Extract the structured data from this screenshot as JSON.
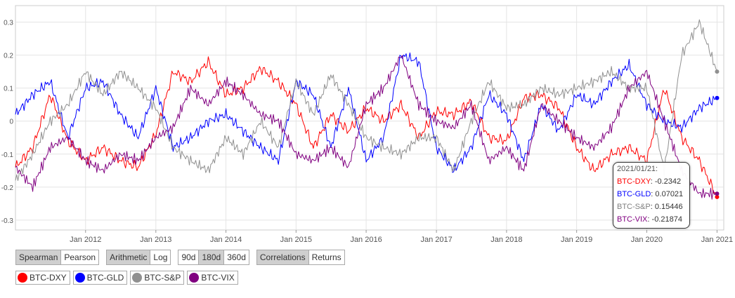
{
  "chart_data": {
    "type": "line",
    "title": "",
    "xlabel": "",
    "ylabel": "",
    "ylim": [
      -0.33,
      0.35
    ],
    "xlim": [
      "2011-01-01",
      "2021-02-05"
    ],
    "grid": true,
    "yticks": [
      0.3,
      0.2,
      0.1,
      0,
      -0.1,
      -0.2,
      -0.3
    ],
    "yticklabels": [
      "0.3",
      "0.2",
      "0.1",
      "0",
      "-0.1",
      "-0.2",
      "-0.3"
    ],
    "xticks": [
      "2012-01-01",
      "2013-01-01",
      "2014-01-01",
      "2015-01-01",
      "2016-01-01",
      "2017-01-01",
      "2018-01-01",
      "2019-01-01",
      "2020-01-01",
      "2021-01-01"
    ],
    "xticklabels": [
      "Jan 2012",
      "Jan 2013",
      "Jan 2014",
      "Jan 2015",
      "Jan 2016",
      "Jan 2017",
      "Jan 2018",
      "Jan 2019",
      "Jan 2020",
      "Jan 2021"
    ],
    "series": [
      {
        "name": "BTC-DXY",
        "color": "#ff0000",
        "x": [
          "2011-01",
          "2011-04",
          "2011-07",
          "2011-10",
          "2012-01",
          "2012-04",
          "2012-07",
          "2012-10",
          "2013-01",
          "2013-04",
          "2013-07",
          "2013-10",
          "2014-01",
          "2014-04",
          "2014-07",
          "2014-10",
          "2015-01",
          "2015-04",
          "2015-07",
          "2015-10",
          "2016-01",
          "2016-04",
          "2016-07",
          "2016-10",
          "2017-01",
          "2017-04",
          "2017-07",
          "2017-10",
          "2018-01",
          "2018-04",
          "2018-07",
          "2018-10",
          "2019-01",
          "2019-04",
          "2019-07",
          "2019-10",
          "2020-01",
          "2020-04",
          "2020-07",
          "2020-10",
          "2021-01"
        ],
        "y": [
          -0.14,
          -0.08,
          0.08,
          -0.06,
          -0.12,
          -0.08,
          -0.12,
          -0.14,
          -0.04,
          0.15,
          0.12,
          0.18,
          0.08,
          0.1,
          0.16,
          0.12,
          0.05,
          -0.08,
          0.02,
          -0.03,
          0.04,
          0.0,
          0.05,
          -0.05,
          0.03,
          0.02,
          0.06,
          -0.05,
          -0.06,
          0.07,
          0.08,
          0.04,
          -0.08,
          -0.15,
          -0.1,
          -0.08,
          -0.12,
          0.1,
          -0.05,
          -0.12,
          -0.23
        ]
      },
      {
        "name": "BTC-GLD",
        "color": "#0000ff",
        "x": [
          "2011-01",
          "2011-04",
          "2011-07",
          "2011-10",
          "2012-01",
          "2012-04",
          "2012-07",
          "2012-10",
          "2013-01",
          "2013-04",
          "2013-07",
          "2013-10",
          "2014-01",
          "2014-04",
          "2014-07",
          "2014-10",
          "2015-01",
          "2015-04",
          "2015-07",
          "2015-10",
          "2016-01",
          "2016-04",
          "2016-07",
          "2016-10",
          "2017-01",
          "2017-04",
          "2017-07",
          "2017-10",
          "2018-01",
          "2018-04",
          "2018-07",
          "2018-10",
          "2019-01",
          "2019-04",
          "2019-07",
          "2019-10",
          "2020-01",
          "2020-04",
          "2020-07",
          "2020-10",
          "2021-01"
        ],
        "y": [
          0.02,
          0.08,
          0.12,
          -0.05,
          0.1,
          0.12,
          0.02,
          -0.05,
          0.1,
          -0.08,
          -0.05,
          0.0,
          0.02,
          -0.03,
          -0.08,
          -0.12,
          0.12,
          0.08,
          -0.08,
          0.1,
          -0.12,
          -0.05,
          0.2,
          0.18,
          -0.08,
          -0.15,
          -0.08,
          0.08,
          0.02,
          -0.12,
          0.05,
          -0.03,
          0.08,
          0.05,
          0.12,
          0.17,
          0.05,
          0.0,
          -0.02,
          0.04,
          0.07
        ]
      },
      {
        "name": "BTC-S&P",
        "color": "#909090",
        "x": [
          "2011-01",
          "2011-04",
          "2011-07",
          "2011-10",
          "2012-01",
          "2012-04",
          "2012-07",
          "2012-10",
          "2013-01",
          "2013-04",
          "2013-07",
          "2013-10",
          "2014-01",
          "2014-04",
          "2014-07",
          "2014-10",
          "2015-01",
          "2015-04",
          "2015-07",
          "2015-10",
          "2016-01",
          "2016-04",
          "2016-07",
          "2016-10",
          "2017-01",
          "2017-04",
          "2017-07",
          "2017-10",
          "2018-01",
          "2018-04",
          "2018-07",
          "2018-10",
          "2019-01",
          "2019-04",
          "2019-07",
          "2019-10",
          "2020-01",
          "2020-04",
          "2020-07",
          "2020-10",
          "2021-01"
        ],
        "y": [
          -0.18,
          -0.1,
          0.0,
          0.05,
          0.15,
          0.08,
          0.15,
          0.1,
          0.04,
          -0.08,
          -0.12,
          -0.15,
          -0.05,
          -0.1,
          0.0,
          -0.08,
          0.12,
          0.02,
          0.14,
          0.05,
          -0.05,
          -0.08,
          -0.1,
          -0.05,
          -0.05,
          -0.15,
          0.0,
          0.12,
          0.04,
          0.05,
          0.1,
          0.08,
          0.1,
          0.12,
          0.15,
          0.1,
          0.1,
          -0.15,
          0.2,
          0.3,
          0.15
        ]
      },
      {
        "name": "BTC-VIX",
        "color": "#800080",
        "x": [
          "2011-01",
          "2011-04",
          "2011-07",
          "2011-10",
          "2012-01",
          "2012-04",
          "2012-07",
          "2012-10",
          "2013-01",
          "2013-04",
          "2013-07",
          "2013-10",
          "2014-01",
          "2014-04",
          "2014-07",
          "2014-10",
          "2015-01",
          "2015-04",
          "2015-07",
          "2015-10",
          "2016-01",
          "2016-04",
          "2016-07",
          "2016-10",
          "2017-01",
          "2017-04",
          "2017-07",
          "2017-10",
          "2018-01",
          "2018-04",
          "2018-07",
          "2018-10",
          "2019-01",
          "2019-04",
          "2019-07",
          "2019-10",
          "2020-01",
          "2020-04",
          "2020-07",
          "2020-10",
          "2021-01"
        ],
        "y": [
          -0.14,
          -0.2,
          -0.08,
          -0.05,
          -0.12,
          -0.15,
          -0.1,
          -0.12,
          -0.05,
          -0.02,
          0.1,
          0.05,
          0.12,
          0.08,
          0.02,
          0.0,
          -0.1,
          -0.12,
          -0.08,
          -0.14,
          0.05,
          0.1,
          0.2,
          0.05,
          0.0,
          -0.02,
          0.05,
          -0.12,
          -0.08,
          -0.15,
          0.05,
          0.0,
          -0.05,
          -0.08,
          -0.02,
          0.1,
          0.15,
          0.0,
          -0.15,
          -0.22,
          -0.22
        ]
      }
    ]
  },
  "tooltip": {
    "date": "2021/01/21:",
    "rows": [
      {
        "name": "BTC-DXY",
        "value": "-0.2342",
        "color": "#ff0000"
      },
      {
        "name": "BTC-GLD",
        "value": "0.07021",
        "color": "#0000ff"
      },
      {
        "name": "BTC-S&P",
        "value": "0.15446",
        "color": "#909090"
      },
      {
        "name": "BTC-VIX",
        "value": "-0.21874",
        "color": "#800080"
      }
    ]
  },
  "controls": {
    "method": [
      "Spearman",
      "Pearson"
    ],
    "scale": [
      "Arithmetic",
      "Log"
    ],
    "window": [
      "90d",
      "180d",
      "360d"
    ],
    "mode": [
      "Correlations",
      "Returns"
    ]
  },
  "legend": [
    {
      "label": "BTC-DXY",
      "color": "#ff0000"
    },
    {
      "label": "BTC-GLD",
      "color": "#0000ff"
    },
    {
      "label": "BTC-S&P",
      "color": "#909090"
    },
    {
      "label": "BTC-VIX",
      "color": "#800080"
    }
  ]
}
